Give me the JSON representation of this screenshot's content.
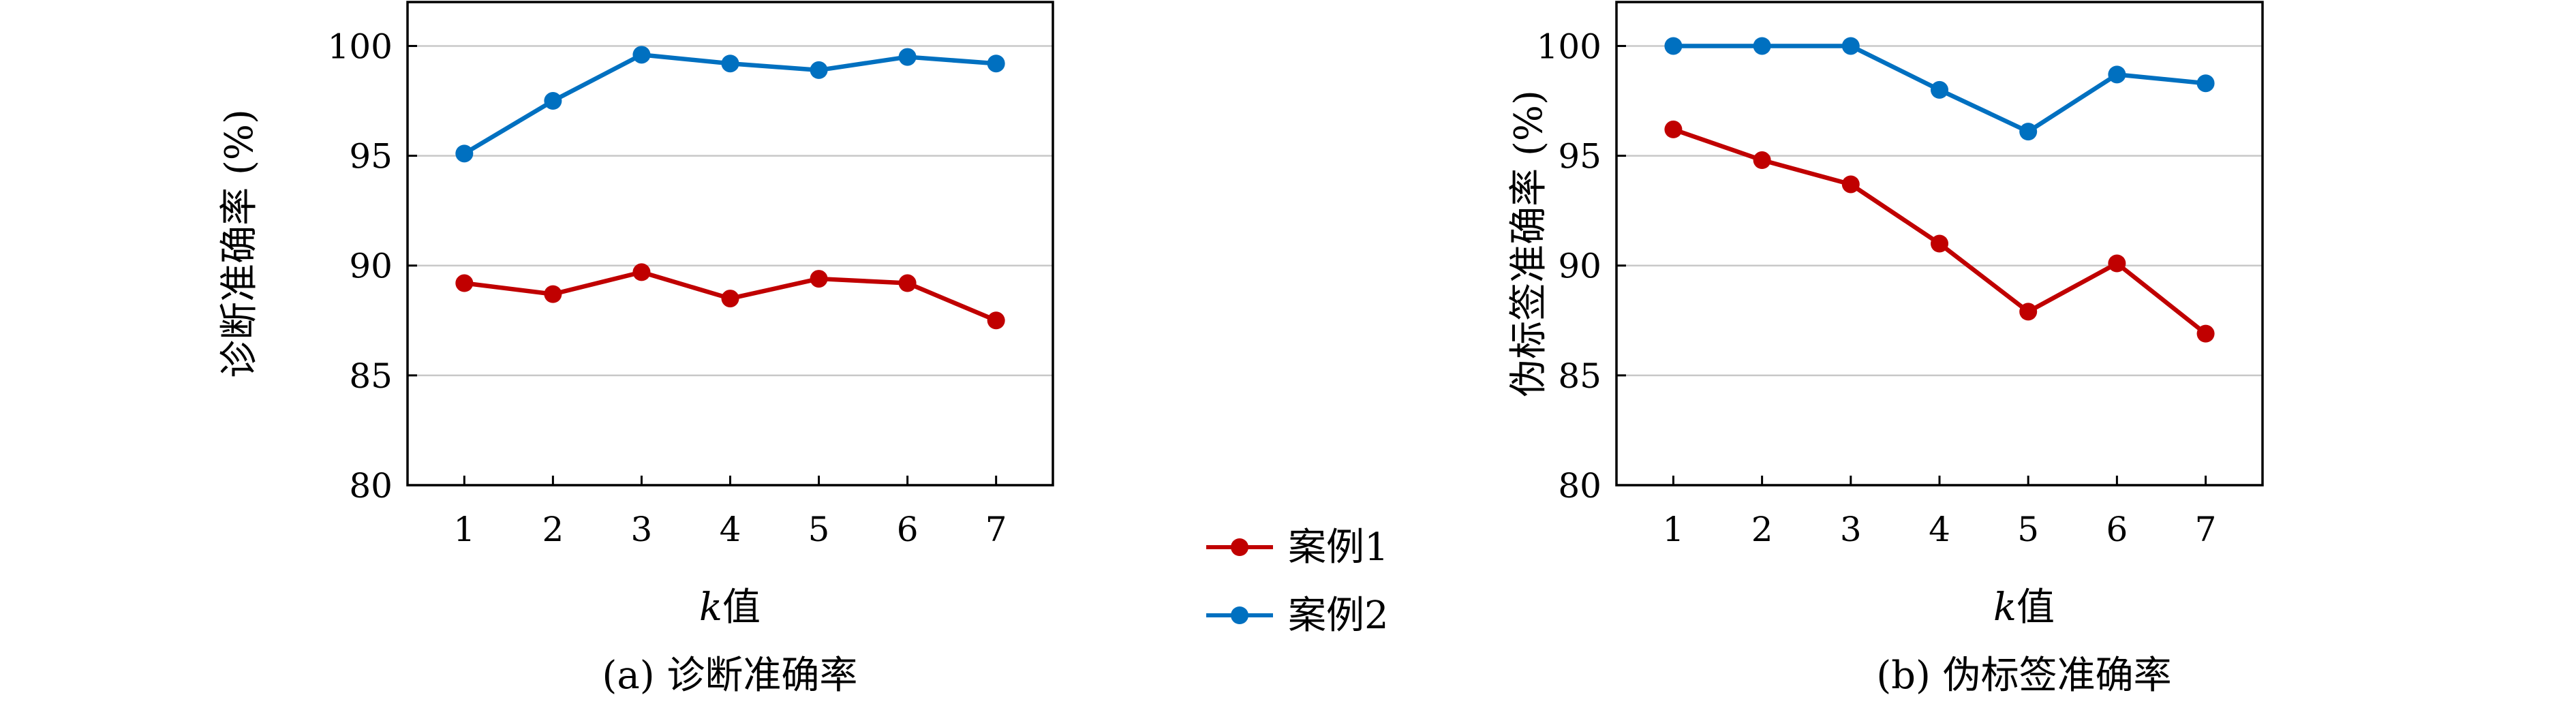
{
  "chart_data": [
    {
      "type": "line",
      "caption": "(a) 诊断准确率",
      "xlabel_italic": "k",
      "xlabel_rest": "值",
      "ylabel": "诊断准确率 (%)",
      "ylim": [
        80,
        102
      ],
      "yticks": [
        80,
        85,
        90,
        95,
        100
      ],
      "x": [
        1,
        2,
        3,
        4,
        5,
        6,
        7
      ],
      "grid": "horizontal",
      "series": [
        {
          "name": "案例1",
          "color": "#c00000",
          "values": [
            89.2,
            88.7,
            89.7,
            88.5,
            89.4,
            89.2,
            87.5
          ]
        },
        {
          "name": "案例2",
          "color": "#0070c0",
          "values": [
            95.1,
            97.5,
            99.6,
            99.2,
            98.9,
            99.5,
            99.2
          ]
        }
      ]
    },
    {
      "type": "line",
      "caption": "(b) 伪标签准确率",
      "xlabel_italic": "k",
      "xlabel_rest": "值",
      "ylabel": "伪标签准确率 (%)",
      "ylim": [
        80,
        102
      ],
      "yticks": [
        80,
        85,
        90,
        95,
        100
      ],
      "x": [
        1,
        2,
        3,
        4,
        5,
        6,
        7
      ],
      "grid": "horizontal",
      "series": [
        {
          "name": "案例1",
          "color": "#c00000",
          "values": [
            96.2,
            94.8,
            93.7,
            91.0,
            87.9,
            90.1,
            86.9
          ]
        },
        {
          "name": "案例2",
          "color": "#0070c0",
          "values": [
            100.0,
            100.0,
            100.0,
            98.0,
            96.1,
            98.7,
            98.3
          ]
        }
      ]
    }
  ],
  "legend": {
    "placement": "center-between",
    "items": [
      {
        "label": "案例1",
        "color": "#c00000"
      },
      {
        "label": "案例2",
        "color": "#0070c0"
      }
    ]
  }
}
